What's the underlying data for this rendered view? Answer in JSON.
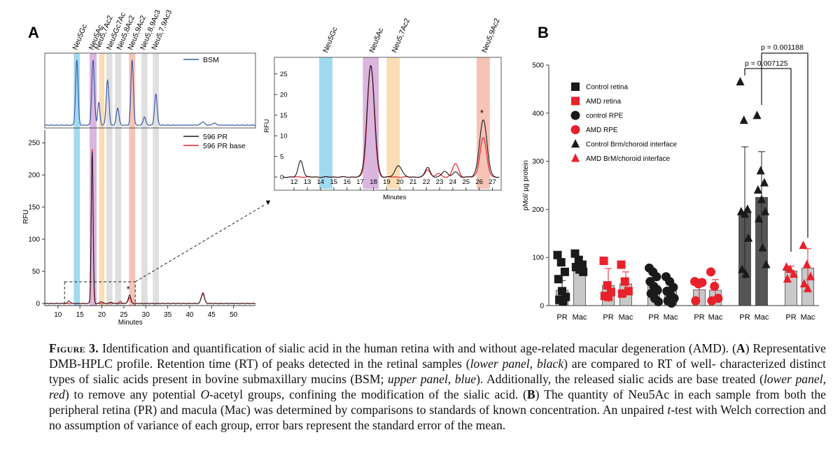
{
  "colors": {
    "black": "#1a1a1a",
    "red": "#e8212a",
    "blue": "#3b5aa8",
    "dark_bar": "#555555",
    "light_bar": "#c8c8c8",
    "band_blue": "#8fd3ee",
    "band_purple": "#d4a8d8",
    "band_orange": "#f9d7a8",
    "band_grey": "#d9d9d9",
    "band_pink": "#f4b8a8"
  },
  "panel_a": {
    "label": "A",
    "band_labels": [
      "Neu5Gc",
      "Neu5Ac",
      "Neu5,7Ac2",
      "Neu5Gc7Ac",
      "Neu5,8Ac2",
      "Neu5,9Ac2",
      "Neu5,8,9Ac3",
      "Neu5,7,9Ac3"
    ],
    "bsm_legend": "BSM",
    "lower_legend": [
      "596 PR",
      "596 PR base"
    ],
    "ylabel": "RFU",
    "xlabel": "Minutes",
    "asterisk": "*",
    "x_ticks": [
      "10",
      "15",
      "20",
      "25",
      "30",
      "35",
      "40",
      "45",
      "50"
    ],
    "y_ticks": [
      "0",
      "50",
      "100",
      "150",
      "200",
      "250"
    ]
  },
  "inset": {
    "band_labels": [
      "Neu5Gc",
      "Neu5Ac",
      "Neu5,7Ac2",
      "Neu5,9Ac2"
    ],
    "ylabel": "RFU",
    "xlabel": "Minutes",
    "asterisk": "*",
    "x_ticks": [
      "12",
      "13",
      "14",
      "15",
      "16",
      "17",
      "18",
      "19",
      "20",
      "21",
      "22",
      "23",
      "24",
      "25",
      "26",
      "27"
    ],
    "y_ticks": [
      "0",
      "5",
      "10",
      "15",
      "20",
      "25"
    ],
    "arrow": "▼"
  },
  "chart_data": [
    {
      "type": "line",
      "title": "A upper: BSM DMB-HPLC profile",
      "xlabel": "Minutes",
      "ylabel": "",
      "xlim": [
        7,
        55
      ],
      "series": [
        {
          "name": "BSM",
          "peaks_minutes": [
            14.3,
            18.0,
            19.3,
            21.3,
            23.6,
            26.9,
            29.7,
            32.3,
            43.0,
            45.6
          ]
        }
      ]
    },
    {
      "type": "line",
      "title": "A lower: 596 PR",
      "xlabel": "Minutes",
      "ylabel": "RFU",
      "xlim": [
        7,
        55
      ],
      "ylim": [
        0,
        260
      ],
      "series": [
        {
          "name": "596 PR",
          "peaks": [
            [
              12.5,
              4
            ],
            [
              17.8,
              235
            ],
            [
              26.3,
              13
            ],
            [
              43.0,
              15
            ]
          ]
        },
        {
          "name": "596 PR base",
          "peaks": [
            [
              17.8,
              240
            ],
            [
              26.3,
              9
            ],
            [
              43.0,
              17
            ]
          ]
        }
      ]
    },
    {
      "type": "line",
      "title": "A inset",
      "xlabel": "Minutes",
      "ylabel": "RFU",
      "xlim": [
        11,
        27.5
      ],
      "ylim": [
        -1,
        28
      ],
      "series": [
        {
          "name": "596 PR",
          "peaks": [
            [
              12.5,
              4
            ],
            [
              17.8,
              27
            ],
            [
              19.9,
              2.8
            ],
            [
              22.1,
              2.4
            ],
            [
              23.4,
              1.5
            ],
            [
              24.2,
              1.2
            ],
            [
              26.3,
              13.8
            ]
          ]
        },
        {
          "name": "596 PR base",
          "peaks": [
            [
              17.8,
              27
            ],
            [
              22.1,
              1.8
            ],
            [
              24.2,
              3.2
            ],
            [
              26.3,
              9.5
            ]
          ]
        }
      ]
    },
    {
      "type": "bar",
      "title": "B",
      "ylabel": "pMol/ µg protein",
      "ylim": [
        0,
        500
      ],
      "y_ticks": [
        "0",
        "100",
        "200",
        "300",
        "400",
        "500"
      ],
      "categories": [
        "PR",
        "Mac",
        "PR",
        "Mac",
        "PR",
        "Mac",
        "PR",
        "Mac",
        "PR",
        "Mac",
        "PR",
        "Mac"
      ],
      "legend": [
        "Control retina",
        "AMD retina",
        "control RPE",
        "AMD RPE",
        "Control Brm/choroid interface",
        "AMD BrM/choroid interface"
      ],
      "groups": [
        {
          "name": "Control retina",
          "marker": "square",
          "color": "black",
          "values": {
            "PR": 32,
            "Mac": 85
          },
          "err": {
            "PR": 20,
            "Mac": 15
          },
          "points": {
            "PR": [
              105,
              90,
              70,
              55,
              30,
              18,
              12,
              8
            ],
            "Mac": [
              108,
              95,
              85,
              80,
              75,
              70
            ]
          }
        },
        {
          "name": "AMD retina",
          "marker": "square",
          "color": "red",
          "values": {
            "PR": 42,
            "Mac": 45
          },
          "err": {
            "PR": 35,
            "Mac": 25
          },
          "points": {
            "PR": [
              93,
              42,
              28,
              20,
              18
            ],
            "Mac": [
              85,
              50,
              30,
              25
            ]
          }
        },
        {
          "name": "control RPE",
          "marker": "circle",
          "color": "black",
          "values": {
            "PR": 42,
            "Mac": 30
          },
          "err": {
            "PR": 28,
            "Mac": 20
          },
          "points": {
            "PR": [
              78,
              70,
              60,
              50,
              40,
              32,
              25,
              15,
              8
            ],
            "Mac": [
              60,
              50,
              38,
              30,
              22,
              15,
              10,
              5
            ]
          }
        },
        {
          "name": "AMD RPE",
          "marker": "circle",
          "color": "red",
          "values": {
            "PR": 33,
            "Mac": 32
          },
          "err": {
            "PR": 22,
            "Mac": 22
          },
          "points": {
            "PR": [
              50,
              45,
              48,
              10
            ],
            "Mac": [
              70,
              40,
              15,
              10
            ]
          }
        },
        {
          "name": "Control Brm/choroid interface",
          "marker": "triangle",
          "color": "black",
          "values": {
            "PR": 193,
            "Mac": 225
          },
          "err": {
            "PR": 137,
            "Mac": 95
          },
          "points": {
            "PR": [
              465,
              385,
              200,
              195,
              190,
              140,
              75,
              65
            ],
            "Mac": [
              395,
              280,
              255,
              240,
              220,
              195,
              180,
              120,
              85
            ]
          }
        },
        {
          "name": "AMD BrM/choroid interface",
          "marker": "triangle",
          "color": "red",
          "values": {
            "PR": 72,
            "Mac": 78
          },
          "err": {
            "PR": 10,
            "Mac": 40
          },
          "points": {
            "PR": [
              80,
              75,
              65,
              55
            ],
            "Mac": [
              125,
              85,
              60,
              45,
              35
            ]
          }
        }
      ],
      "annotations": [
        "p = 0.007125",
        "p = 0.001188"
      ]
    }
  ],
  "panel_b": {
    "label": "B",
    "ylabel": "pMol/ µg protein",
    "y_ticks": [
      "0",
      "100",
      "200",
      "300",
      "400",
      "500"
    ],
    "categories": [
      "PR",
      "Mac",
      "PR",
      "Mac",
      "PR",
      "Mac",
      "PR",
      "Mac",
      "PR",
      "Mac",
      "PR",
      "Mac"
    ],
    "legend": [
      "Control retina",
      "AMD retina",
      "control RPE",
      "AMD RPE",
      "Control Brm/choroid interface",
      "AMD BrM/choroid interface"
    ],
    "p1": "p = 0.007125",
    "p2": "p = 0.001188"
  },
  "caption": {
    "lead": "Figure 3.",
    "s1": " Identification and quantification of sialic acid in the human retina with and without age-related macular degeneration (AMD). (",
    "a": "A",
    "s2": ") Representative DMB-HPLC profile. Retention time (RT) of peaks detected in the retinal samples (",
    "e1": "lower panel, black",
    "s3": ") are compared to RT of well- characterized distinct types of sialic acids present in bovine submaxillary mucins (BSM; ",
    "e2": "upper panel, blue",
    "s4": "). Additionally, the released sialic acids are base treated (",
    "e3": "lower panel, red",
    "s5": ") to remove any potential ",
    "e4": "O",
    "s6": "-acetyl groups, confining the modification of the sialic acid. (",
    "b": "B",
    "s7": ") The quantity of Neu5Ac in each sample from both the peripheral retina (PR) and macula (Mac) was determined by comparisons to standards of known concentration. An unpaired ",
    "e5": "t",
    "s8": "-test with Welch correction and no assumption of variance of each group, error bars represent the standard error of the mean."
  }
}
